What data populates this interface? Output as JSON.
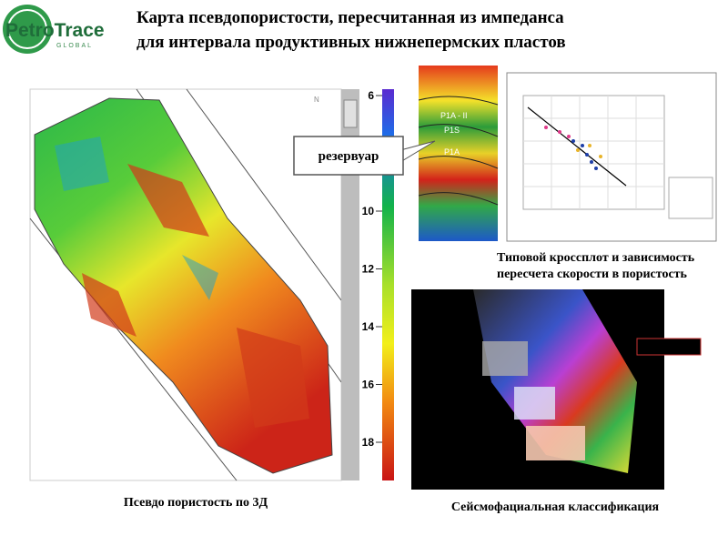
{
  "logo": {
    "name": "PetroTrace",
    "tagline": "GLOBAL"
  },
  "title": {
    "lines": [
      "Карта псевдопористости,  пересчитанная  из импеданса",
      "для интервала продуктивных нижнепермских пластов"
    ]
  },
  "callout": "резервуар",
  "colorbar": {
    "ticks": [
      6,
      10,
      12,
      14,
      16,
      18
    ]
  },
  "seismic": {
    "labels": [
      "P1A - II",
      "P1S",
      "P1A"
    ]
  },
  "crossplot_caption": [
    "Типовой кроссплот и зависимость",
    "пересчета скорости в пористость"
  ],
  "captions": {
    "map": "Псевдо пористость по 3Д",
    "facies": "Сейсмофациальная классификация"
  }
}
